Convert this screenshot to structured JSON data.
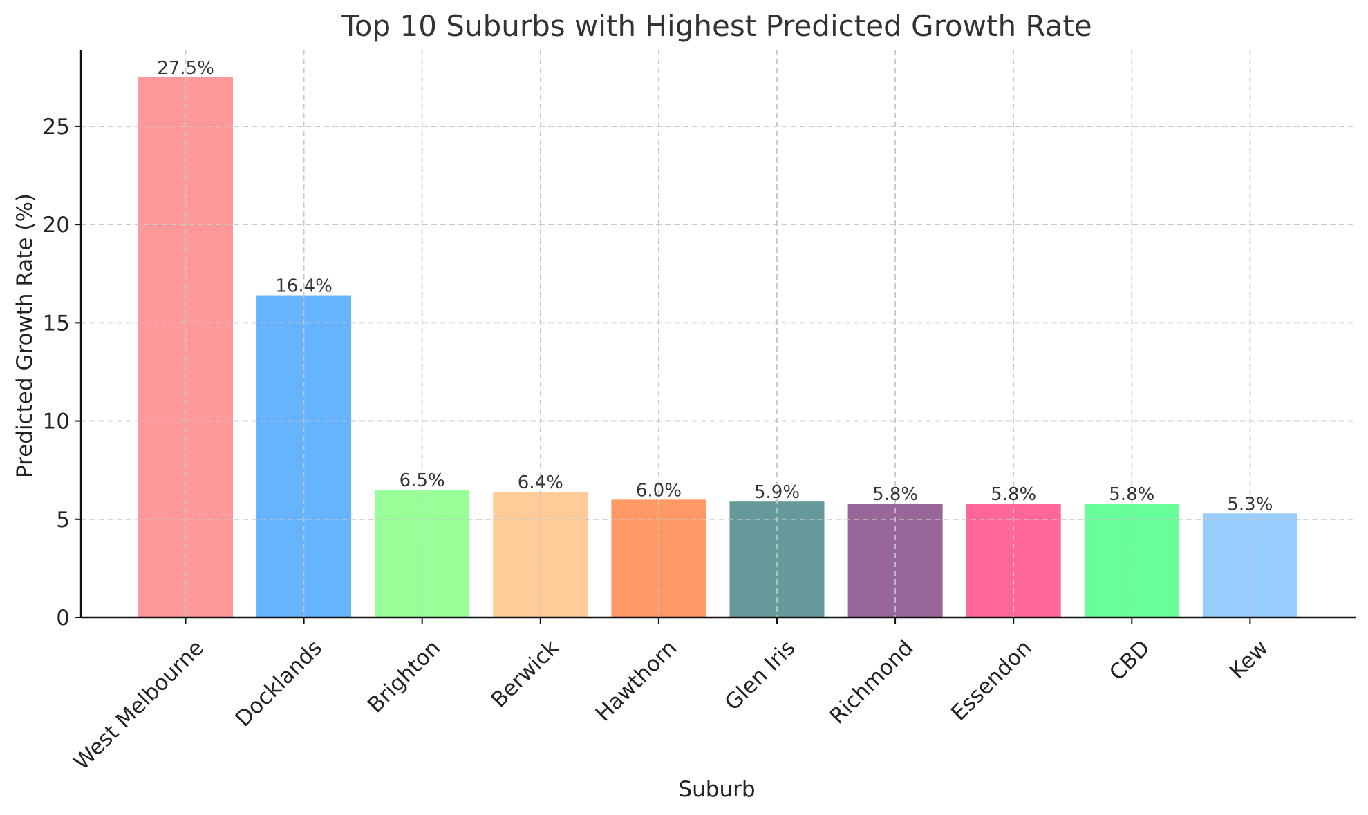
{
  "chart_data": {
    "type": "bar",
    "title": "Top 10 Suburbs with Highest Predicted Growth Rate",
    "xlabel": "Suburb",
    "ylabel": "Predicted Growth Rate (%)",
    "categories": [
      "West Melbourne",
      "Docklands",
      "Brighton",
      "Berwick",
      "Hawthorn",
      "Glen Iris",
      "Richmond",
      "Essendon",
      "CBD",
      "Kew"
    ],
    "values": [
      27.5,
      16.4,
      6.5,
      6.4,
      6.0,
      5.9,
      5.8,
      5.8,
      5.8,
      5.3
    ],
    "data_labels": [
      "27.5%",
      "16.4%",
      "6.5%",
      "6.4%",
      "6.0%",
      "5.9%",
      "5.8%",
      "5.8%",
      "5.8%",
      "5.3%"
    ],
    "colors": [
      "#ff9999",
      "#66b3ff",
      "#99ff99",
      "#ffcc99",
      "#ff9966",
      "#669999",
      "#996699",
      "#ff6699",
      "#66ff99",
      "#99ccff"
    ],
    "ylim": [
      0,
      28.9
    ],
    "yticks": [
      0,
      5,
      10,
      15,
      20,
      25
    ],
    "ytick_labels": [
      "0",
      "5",
      "10",
      "15",
      "20",
      "25"
    ],
    "grid": true,
    "legend": "none"
  }
}
